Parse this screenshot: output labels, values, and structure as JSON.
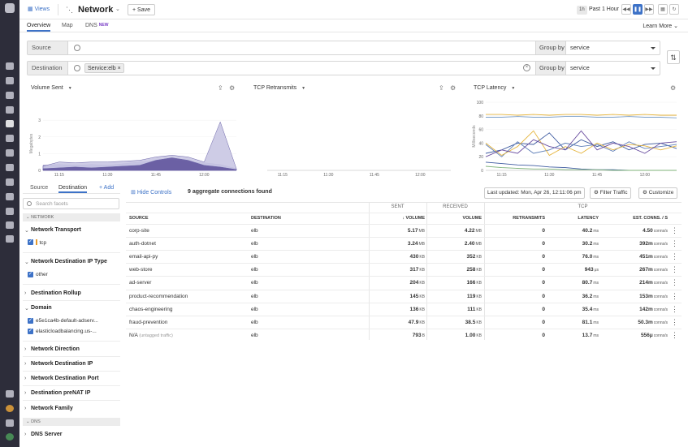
{
  "app": {
    "views_label": "Views",
    "title": "Network",
    "save_label": "Save",
    "time_tag": "1h",
    "time_range": "Past 1 Hour"
  },
  "tabs": [
    {
      "label": "Overview"
    },
    {
      "label": "Map"
    },
    {
      "label": "DNS",
      "badge": "NEW"
    }
  ],
  "learn_more": "Learn More",
  "query": {
    "source": {
      "label": "Source",
      "group_by_label": "Group by",
      "group_by": "service"
    },
    "destination": {
      "label": "Destination",
      "chip": "Service:elb",
      "group_by_label": "Group by",
      "group_by": "service"
    }
  },
  "panels": [
    {
      "title": "Volume Sent"
    },
    {
      "title": "TCP Retransmits"
    },
    {
      "title": "TCP Latency"
    }
  ],
  "chart_data": [
    {
      "type": "area",
      "title": "Volume Sent",
      "ylabel": "Megabytes",
      "x_ticks": [
        "11:15",
        "11:30",
        "11:45",
        "12:00"
      ],
      "y_ticks": [
        "0",
        "1",
        "2",
        "3"
      ],
      "ylim": [
        0,
        3.2
      ],
      "x": [
        "11:10",
        "11:15",
        "11:20",
        "11:25",
        "11:30",
        "11:35",
        "11:40",
        "11:45",
        "11:50",
        "11:55",
        "12:00",
        "12:05",
        "12:10"
      ],
      "series": [
        {
          "values": [
            0.3,
            0.35,
            0.3,
            0.35,
            0.3,
            0.4,
            0.5,
            0.55,
            0.6,
            0.5,
            0.45,
            0.35,
            0.1
          ]
        },
        {
          "values": [
            0.25,
            0.5,
            0.45,
            0.5,
            0.5,
            0.55,
            0.6,
            0.8,
            0.9,
            0.8,
            0.5,
            2.9,
            0.1
          ]
        },
        {
          "values": [
            0.1,
            0.15,
            0.2,
            0.15,
            0.2,
            0.25,
            0.3,
            0.6,
            0.75,
            0.6,
            0.3,
            0.2,
            0.05
          ]
        }
      ],
      "colors": [
        "#8a85c0",
        "#c9c6e3",
        "#4c3f8f"
      ]
    },
    {
      "type": "line",
      "title": "TCP Retransmits",
      "x_ticks": [
        "11:15",
        "11:30",
        "11:45",
        "12:00"
      ]
    },
    {
      "type": "line",
      "title": "TCP Latency",
      "ylabel": "Milliseconds",
      "x_ticks": [
        "11:15",
        "11:30",
        "11:45",
        "12:00"
      ],
      "y_ticks": [
        "0",
        "20",
        "40",
        "60",
        "80",
        "100"
      ],
      "ylim": [
        0,
        100
      ],
      "x": [
        "11:10",
        "11:15",
        "11:20",
        "11:25",
        "11:30",
        "11:35",
        "11:40",
        "11:45",
        "11:50",
        "11:55",
        "12:00",
        "12:05",
        "12:10"
      ],
      "series": [
        {
          "values": [
            82,
            82,
            81,
            82,
            81,
            82,
            82,
            81,
            82,
            81,
            82,
            81,
            81
          ],
          "color": "#e5b43c"
        },
        {
          "values": [
            78,
            78,
            79,
            78,
            78,
            79,
            79,
            78,
            78,
            79,
            78,
            78,
            77
          ],
          "color": "#7a9ec9"
        },
        {
          "values": [
            25,
            30,
            40,
            38,
            55,
            30,
            45,
            35,
            42,
            30,
            38,
            40,
            32
          ],
          "color": "#3d5aa0"
        },
        {
          "values": [
            38,
            20,
            42,
            25,
            30,
            40,
            35,
            38,
            28,
            42,
            32,
            35,
            38
          ],
          "color": "#5f7fb8"
        },
        {
          "values": [
            40,
            22,
            35,
            58,
            22,
            35,
            25,
            40,
            30,
            38,
            36,
            30,
            36
          ],
          "color": "#e5b43c"
        },
        {
          "values": [
            20,
            30,
            25,
            45,
            35,
            30,
            58,
            30,
            40,
            35,
            25,
            40,
            42
          ],
          "color": "#6b4fa0"
        },
        {
          "values": [
            12,
            10,
            8,
            7,
            5,
            4,
            2,
            1,
            1,
            0,
            0,
            0,
            0
          ],
          "color": "#3d5aa0"
        },
        {
          "values": [
            6,
            4,
            3,
            2,
            2,
            1,
            1,
            1,
            0,
            0,
            0,
            0,
            0
          ],
          "color": "#7fb37a"
        }
      ]
    }
  ],
  "facets": {
    "tabs": [
      "Source",
      "Destination"
    ],
    "add": "Add",
    "search_placeholder": "Search facets",
    "sections": {
      "network": "NETWORK",
      "dns": "DNS"
    },
    "groups": [
      {
        "label": "Network Transport",
        "items": [
          "tcp"
        ]
      },
      {
        "label": "Network Destination IP Type",
        "items": [
          "other"
        ]
      },
      {
        "label": "Destination Rollup"
      },
      {
        "label": "Domain",
        "items": [
          "e5e1ca4b-default-adserv...",
          "elasticloadbalancing.us-..."
        ]
      },
      {
        "label": "Network Direction"
      },
      {
        "label": "Network Destination IP"
      },
      {
        "label": "Network Destination Port"
      },
      {
        "label": "Destination preNAT IP"
      },
      {
        "label": "Network Family"
      },
      {
        "label": "DNS Server"
      }
    ]
  },
  "controls": {
    "hide": "Hide Controls",
    "count": "9 aggregate connections found",
    "last_updated": "Last updated: Mon, Apr 26, 12:11:06 pm",
    "filter": "Filter Traffic",
    "customize": "Customize"
  },
  "table": {
    "groups": [
      "SENT",
      "RECEIVED",
      "TCP"
    ],
    "columns": [
      "SOURCE",
      "DESTINATION",
      "VOLUME",
      "VOLUME",
      "RETRANSMITS",
      "LATENCY",
      "EST. CONNS. / S"
    ],
    "rows": [
      {
        "source": "corp-site",
        "dest": "elb",
        "sent": "5.17",
        "sent_u": "MB",
        "recv": "4.22",
        "recv_u": "MB",
        "retr": "0",
        "lat": "40.2",
        "lat_u": "ms",
        "conns": "4.50",
        "conns_u": "conns/s"
      },
      {
        "source": "auth-dotnet",
        "dest": "elb",
        "sent": "3.24",
        "sent_u": "MB",
        "recv": "2.40",
        "recv_u": "MB",
        "retr": "0",
        "lat": "30.2",
        "lat_u": "ms",
        "conns": "392m",
        "conns_u": "conns/s"
      },
      {
        "source": "email-api-py",
        "dest": "elb",
        "sent": "430",
        "sent_u": "KB",
        "recv": "352",
        "recv_u": "KB",
        "retr": "0",
        "lat": "76.0",
        "lat_u": "ms",
        "conns": "451m",
        "conns_u": "conns/s"
      },
      {
        "source": "web-store",
        "dest": "elb",
        "sent": "317",
        "sent_u": "KB",
        "recv": "258",
        "recv_u": "KB",
        "retr": "0",
        "lat": "943",
        "lat_u": "μs",
        "conns": "267m",
        "conns_u": "conns/s"
      },
      {
        "source": "ad-server",
        "dest": "elb",
        "sent": "204",
        "sent_u": "KB",
        "recv": "166",
        "recv_u": "KB",
        "retr": "0",
        "lat": "80.7",
        "lat_u": "ms",
        "conns": "214m",
        "conns_u": "conns/s"
      },
      {
        "source": "product-recommendation",
        "dest": "elb",
        "sent": "145",
        "sent_u": "KB",
        "recv": "119",
        "recv_u": "KB",
        "retr": "0",
        "lat": "36.2",
        "lat_u": "ms",
        "conns": "153m",
        "conns_u": "conns/s"
      },
      {
        "source": "chaos-engineering",
        "dest": "elb",
        "sent": "136",
        "sent_u": "KB",
        "recv": "111",
        "recv_u": "KB",
        "retr": "0",
        "lat": "35.4",
        "lat_u": "ms",
        "conns": "142m",
        "conns_u": "conns/s"
      },
      {
        "source": "fraud-prevention",
        "dest": "elb",
        "sent": "47.9",
        "sent_u": "KB",
        "recv": "38.5",
        "recv_u": "KB",
        "retr": "0",
        "lat": "81.1",
        "lat_u": "ms",
        "conns": "50.3m",
        "conns_u": "conns/s"
      },
      {
        "source": "N/A",
        "source_note": "(untagged traffic)",
        "dest": "elb",
        "sent": "793",
        "sent_u": "B",
        "recv": "1.00",
        "recv_u": "KB",
        "retr": "0",
        "lat": "13.7",
        "lat_u": "ms",
        "conns": "556μ",
        "conns_u": "conns/s"
      }
    ]
  }
}
